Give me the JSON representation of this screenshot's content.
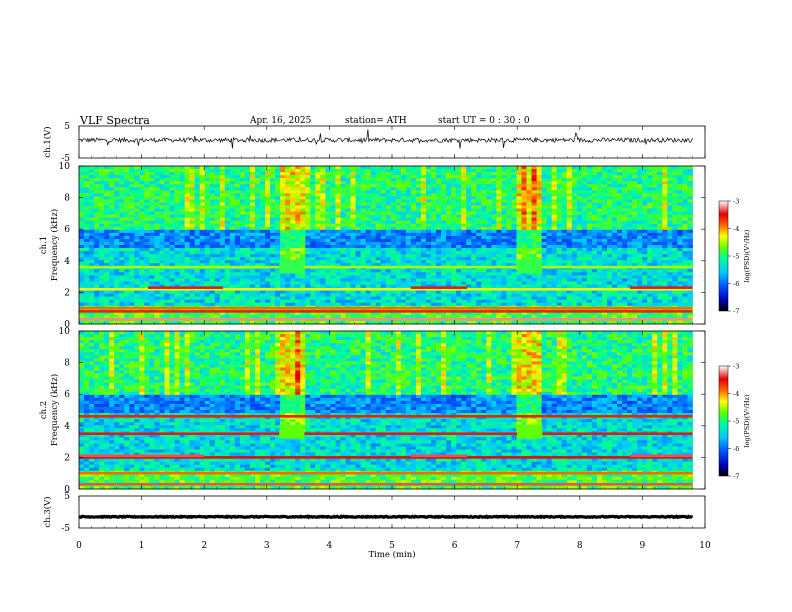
{
  "header": {
    "title": "VLF  Spectra",
    "date": "Apr. 16, 2025",
    "station": "station= ATH",
    "start": "start  UT  =    0  : 30 : 0"
  },
  "colors": {
    "colormap": [
      "#000000",
      "#0000b4",
      "#0050ff",
      "#00c8ff",
      "#00ff96",
      "#64ff00",
      "#ffff00",
      "#ff6400",
      "#e00000",
      "#ffffff"
    ],
    "trace": "#000000"
  },
  "chart_data": [
    {
      "type": "line",
      "name": "ch1-waveform",
      "ylabel": "ch.1(V)",
      "ylim": [
        -5,
        5
      ],
      "yticks": [
        "5",
        "-5"
      ],
      "x_range": [
        0,
        9.8
      ],
      "baseline": 0.6,
      "noise_amplitude": 0.7
    },
    {
      "type": "heatmap",
      "name": "ch1-spectrogram",
      "ylabel": "ch.1\nFrequency  (kHz)",
      "ylim": [
        0,
        10
      ],
      "yticks": [
        "0",
        "2",
        "4",
        "6",
        "8",
        "10"
      ],
      "x_range": [
        0,
        9.8
      ],
      "colorbar": {
        "label": "log(PSD)(V²/Hz)",
        "range": [
          -7,
          -3
        ],
        "ticks": [
          "-3",
          "-4",
          "-5",
          "-6",
          "-7"
        ]
      },
      "bands": [
        {
          "freq": 0.3,
          "level": -3.2
        },
        {
          "freq": 0.8,
          "level": -3.6
        },
        {
          "freq": 1.0,
          "level": -3.9
        },
        {
          "freq": 2.2,
          "level": -4.4
        },
        {
          "freq": 2.3,
          "level": -3.4,
          "segments": [
            [
              1.1,
              2.3
            ],
            [
              5.3,
              6.2
            ],
            [
              8.8,
              9.8
            ]
          ]
        },
        {
          "freq": 3.6,
          "level": -4.6
        },
        {
          "freq": 4.0,
          "level": -5.0,
          "segments": [
            [
              3.2,
              3.6
            ],
            [
              7.0,
              7.4
            ]
          ]
        }
      ]
    },
    {
      "type": "heatmap",
      "name": "ch2-spectrogram",
      "ylabel": "ch.2\nFrequency  (kHz)",
      "ylim": [
        0,
        10
      ],
      "yticks": [
        "0",
        "2",
        "4",
        "6",
        "8",
        "10"
      ],
      "x_range": [
        0,
        9.8
      ],
      "colorbar": {
        "label": "log(PSD)(V²/Hz)",
        "range": [
          -7,
          -3
        ],
        "ticks": [
          "-3",
          "-4",
          "-5",
          "-6",
          "-7"
        ]
      },
      "bands": [
        {
          "freq": 0.3,
          "level": -3.3
        },
        {
          "freq": 1.0,
          "level": -3.9
        },
        {
          "freq": 2.0,
          "level": -3.5
        },
        {
          "freq": 2.1,
          "level": -3.3,
          "segments": [
            [
              0.0,
              2.0
            ],
            [
              5.3,
              6.2
            ],
            [
              8.8,
              9.8
            ]
          ]
        },
        {
          "freq": 3.5,
          "level": -3.4
        },
        {
          "freq": 4.6,
          "level": -3.6
        },
        {
          "freq": 4.0,
          "level": -4.8,
          "segments": [
            [
              3.2,
              3.6
            ],
            [
              7.0,
              7.4
            ]
          ]
        }
      ]
    },
    {
      "type": "line",
      "name": "ch3-waveform",
      "ylabel": "ch.3(V)",
      "ylim": [
        -5,
        5
      ],
      "yticks": [
        "5",
        "-5"
      ],
      "x_range": [
        0,
        9.8
      ],
      "baseline": -1.5,
      "noise_amplitude": 0.15
    }
  ],
  "xaxis": {
    "label": "Time  (min)",
    "range": [
      0,
      10
    ],
    "ticks": [
      "0",
      "1",
      "2",
      "3",
      "4",
      "5",
      "6",
      "7",
      "8",
      "9",
      "10"
    ]
  }
}
